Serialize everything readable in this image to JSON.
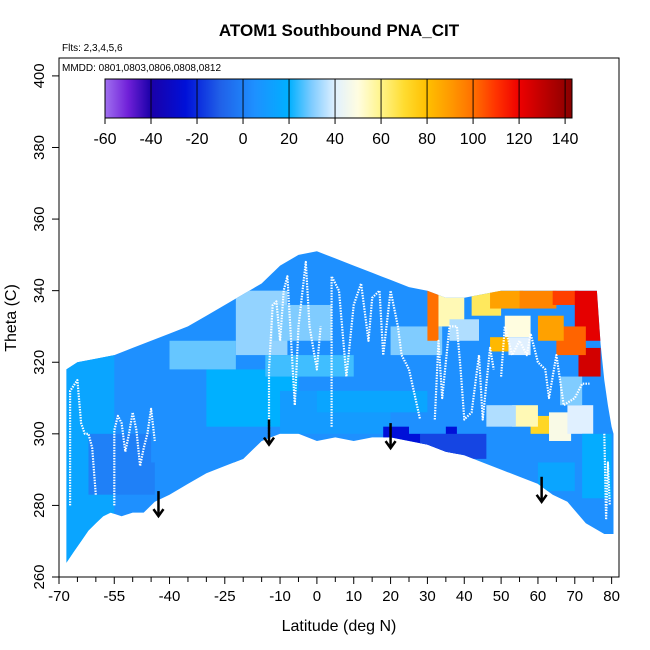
{
  "chart_data": {
    "type": "heatmap",
    "title": "ATOM1 Southbound PNA_CIT",
    "flights_note": "Flts: 2,3,4,5,6",
    "dates_note": "MMDD: 0801,0803,0806,0808,0812",
    "xlabel": "Latitude (deg N)",
    "ylabel": "Theta (C)",
    "xlim": [
      -70,
      82
    ],
    "ylim": [
      260,
      405
    ],
    "x_ticks": [
      -70,
      -55,
      -40,
      -25,
      -10,
      0,
      10,
      20,
      30,
      40,
      50,
      60,
      70,
      80
    ],
    "x_minor_ticks": [
      -65,
      -60,
      -50,
      -45,
      -35,
      -30,
      -20,
      -15,
      -5,
      5,
      15,
      25,
      35,
      45,
      55,
      65,
      75
    ],
    "y_ticks": [
      260,
      280,
      300,
      320,
      340,
      360,
      380,
      400
    ],
    "colorbar": {
      "range": [
        -60,
        143
      ],
      "ticks": [
        -60,
        -40,
        -20,
        0,
        20,
        40,
        60,
        80,
        100,
        120,
        140
      ],
      "boundaries": [
        -40,
        -20,
        0,
        20,
        40,
        60,
        80,
        100,
        120,
        140
      ],
      "stops": [
        {
          "v": -60,
          "c": "#a070f0"
        },
        {
          "v": -50,
          "c": "#7020d8"
        },
        {
          "v": -40,
          "c": "#1a00a8"
        },
        {
          "v": -25,
          "c": "#0010d8"
        },
        {
          "v": -10,
          "c": "#2060e8"
        },
        {
          "v": 5,
          "c": "#1e90ff"
        },
        {
          "v": 20,
          "c": "#00b0ff"
        },
        {
          "v": 30,
          "c": "#80ccff"
        },
        {
          "v": 40,
          "c": "#e0f0ff"
        },
        {
          "v": 50,
          "c": "#fffde0"
        },
        {
          "v": 60,
          "c": "#fff48a"
        },
        {
          "v": 70,
          "c": "#ffdc30"
        },
        {
          "v": 80,
          "c": "#ffbf00"
        },
        {
          "v": 90,
          "c": "#ff9a00"
        },
        {
          "v": 100,
          "c": "#ff7000"
        },
        {
          "v": 110,
          "c": "#ff3300"
        },
        {
          "v": 120,
          "c": "#ee0000"
        },
        {
          "v": 130,
          "c": "#c00000"
        },
        {
          "v": 143,
          "c": "#880000"
        }
      ]
    },
    "top_envelope": [
      [
        -68,
        318
      ],
      [
        -65,
        320
      ],
      [
        -60,
        321
      ],
      [
        -55,
        322
      ],
      [
        -50,
        324
      ],
      [
        -45,
        326
      ],
      [
        -40,
        328
      ],
      [
        -35,
        330
      ],
      [
        -30,
        333
      ],
      [
        -25,
        336
      ],
      [
        -20,
        339
      ],
      [
        -15,
        342
      ],
      [
        -10,
        347
      ],
      [
        -5,
        350
      ],
      [
        0,
        351
      ],
      [
        5,
        349
      ],
      [
        10,
        347
      ],
      [
        15,
        345
      ],
      [
        20,
        343
      ],
      [
        25,
        341
      ],
      [
        30,
        340
      ],
      [
        35,
        338
      ],
      [
        40,
        338
      ],
      [
        45,
        339
      ],
      [
        50,
        340
      ],
      [
        55,
        340
      ],
      [
        60,
        340
      ],
      [
        65,
        340
      ],
      [
        70,
        340
      ],
      [
        76,
        340
      ],
      [
        77,
        325
      ],
      [
        78,
        315
      ],
      [
        79,
        308
      ],
      [
        80,
        302
      ],
      [
        80.5,
        300
      ]
    ],
    "bottom_envelope": [
      [
        80.5,
        300
      ],
      [
        80.5,
        272
      ],
      [
        78,
        272
      ],
      [
        73,
        275
      ],
      [
        68,
        281
      ],
      [
        64,
        283
      ],
      [
        60,
        286
      ],
      [
        55,
        288
      ],
      [
        50,
        290
      ],
      [
        45,
        292
      ],
      [
        40,
        294
      ],
      [
        35,
        295
      ],
      [
        30,
        297
      ],
      [
        25,
        298
      ],
      [
        20,
        299
      ],
      [
        15,
        299
      ],
      [
        10,
        298
      ],
      [
        5,
        299
      ],
      [
        0,
        298
      ],
      [
        -5,
        300
      ],
      [
        -10,
        300
      ],
      [
        -15,
        298
      ],
      [
        -20,
        293
      ],
      [
        -25,
        291
      ],
      [
        -30,
        289
      ],
      [
        -35,
        286
      ],
      [
        -40,
        283
      ],
      [
        -44,
        281
      ],
      [
        -47,
        278
      ],
      [
        -50,
        278
      ],
      [
        -53,
        277
      ],
      [
        -56,
        278
      ],
      [
        -58,
        277
      ],
      [
        -60,
        275
      ],
      [
        -62,
        273
      ],
      [
        -64,
        270
      ],
      [
        -66,
        267
      ],
      [
        -68,
        264
      ],
      [
        -68,
        318
      ]
    ],
    "field_patches": [
      {
        "x": [
          -68,
          -55
        ],
        "y": [
          264,
          322
        ],
        "value": 15
      },
      {
        "x": [
          -62,
          -44
        ],
        "y": [
          283,
          300
        ],
        "value": 0
      },
      {
        "x": [
          -45,
          -14
        ],
        "y": [
          292,
          304
        ],
        "value": 5
      },
      {
        "x": [
          -30,
          -5
        ],
        "y": [
          302,
          318
        ],
        "value": 20
      },
      {
        "x": [
          -40,
          -22
        ],
        "y": [
          318,
          326
        ],
        "value": 28
      },
      {
        "x": [
          -22,
          -8
        ],
        "y": [
          322,
          340
        ],
        "value": 32
      },
      {
        "x": [
          -12,
          4
        ],
        "y": [
          326,
          336
        ],
        "value": 30
      },
      {
        "x": [
          -14,
          10
        ],
        "y": [
          316,
          322
        ],
        "value": 25
      },
      {
        "x": [
          -10,
          20
        ],
        "y": [
          300,
          312
        ],
        "value": 10
      },
      {
        "x": [
          0,
          30
        ],
        "y": [
          306,
          312
        ],
        "value": 15
      },
      {
        "x": [
          18,
          38
        ],
        "y": [
          294,
          302
        ],
        "value": -25
      },
      {
        "x": [
          28,
          46
        ],
        "y": [
          293,
          300
        ],
        "value": -15
      },
      {
        "x": [
          25,
          35
        ],
        "y": [
          300,
          306
        ],
        "value": 5
      },
      {
        "x": [
          20,
          34
        ],
        "y": [
          322,
          330
        ],
        "value": 30
      },
      {
        "x": [
          30,
          33
        ],
        "y": [
          326,
          340
        ],
        "value": 100
      },
      {
        "x": [
          33,
          40
        ],
        "y": [
          330,
          340
        ],
        "value": 55
      },
      {
        "x": [
          36,
          44
        ],
        "y": [
          326,
          332
        ],
        "value": 35
      },
      {
        "x": [
          42,
          50
        ],
        "y": [
          333,
          340
        ],
        "value": 65
      },
      {
        "x": [
          47,
          56
        ],
        "y": [
          335,
          340
        ],
        "value": 88
      },
      {
        "x": [
          55,
          65
        ],
        "y": [
          335,
          340
        ],
        "value": 95
      },
      {
        "x": [
          64,
          71
        ],
        "y": [
          336,
          340
        ],
        "value": 108
      },
      {
        "x": [
          70,
          77
        ],
        "y": [
          326,
          340
        ],
        "value": 122
      },
      {
        "x": [
          71,
          77
        ],
        "y": [
          316,
          324
        ],
        "value": 126
      },
      {
        "x": [
          65,
          73
        ],
        "y": [
          322,
          330
        ],
        "value": 102
      },
      {
        "x": [
          60,
          67
        ],
        "y": [
          326,
          333
        ],
        "value": 88
      },
      {
        "x": [
          51,
          58
        ],
        "y": [
          327,
          333
        ],
        "value": 50
      },
      {
        "x": [
          47,
          52
        ],
        "y": [
          323,
          327
        ],
        "value": 82
      },
      {
        "x": [
          52,
          58
        ],
        "y": [
          322,
          327
        ],
        "value": 40
      },
      {
        "x": [
          58,
          63
        ],
        "y": [
          300,
          305
        ],
        "value": 72
      },
      {
        "x": [
          53,
          60
        ],
        "y": [
          302,
          308
        ],
        "value": 55
      },
      {
        "x": [
          63,
          69
        ],
        "y": [
          298,
          306
        ],
        "value": 48
      },
      {
        "x": [
          68,
          75
        ],
        "y": [
          300,
          308
        ],
        "value": 40
      },
      {
        "x": [
          46,
          54
        ],
        "y": [
          302,
          308
        ],
        "value": 35
      },
      {
        "x": [
          66,
          72
        ],
        "y": [
          308,
          316
        ],
        "value": 30
      },
      {
        "x": [
          72,
          80
        ],
        "y": [
          282,
          300
        ],
        "value": 18
      },
      {
        "x": [
          60,
          70
        ],
        "y": [
          284,
          292
        ],
        "value": 15
      }
    ],
    "arrows": [
      {
        "lat": -43,
        "theta_top": 284,
        "theta_tip": 277
      },
      {
        "lat": -13,
        "theta_top": 304,
        "theta_tip": 297
      },
      {
        "lat": 20,
        "theta_top": 303,
        "theta_tip": 296
      },
      {
        "lat": 61,
        "theta_top": 288,
        "theta_tip": 281
      }
    ],
    "flight_tracks": [
      [
        [
          -67,
          280
        ],
        [
          -67,
          312
        ],
        [
          -65,
          315
        ],
        [
          -64,
          303
        ],
        [
          -63,
          300
        ],
        [
          -62,
          300
        ],
        [
          -61,
          296
        ],
        [
          -60,
          283
        ]
      ],
      [
        [
          -55,
          280
        ],
        [
          -55,
          301
        ],
        [
          -54,
          305
        ],
        [
          -53,
          303
        ],
        [
          -52,
          295
        ],
        [
          -51,
          300
        ],
        [
          -50,
          306
        ],
        [
          -49,
          301
        ],
        [
          -48,
          291
        ],
        [
          -47,
          296
        ],
        [
          -46,
          300
        ],
        [
          -45,
          307
        ],
        [
          -44,
          298
        ]
      ],
      [
        [
          -13,
          298
        ],
        [
          -13,
          318
        ],
        [
          -12,
          336
        ],
        [
          -11,
          337
        ],
        [
          -10,
          326
        ],
        [
          -9,
          340
        ],
        [
          -8,
          344
        ],
        [
          -7,
          326
        ],
        [
          -6,
          308
        ],
        [
          -5,
          330
        ],
        [
          -3,
          348
        ],
        [
          -2,
          330
        ],
        [
          0,
          318
        ],
        [
          1,
          330
        ]
      ],
      [
        [
          4,
          302
        ],
        [
          4,
          344
        ],
        [
          6,
          340
        ],
        [
          8,
          316
        ],
        [
          10,
          336
        ],
        [
          12,
          342
        ],
        [
          14,
          326
        ],
        [
          15,
          338
        ],
        [
          17,
          340
        ],
        [
          18,
          322
        ],
        [
          20,
          340
        ],
        [
          22,
          330
        ],
        [
          23,
          322
        ],
        [
          25,
          318
        ],
        [
          28,
          304
        ]
      ],
      [
        [
          32,
          304
        ],
        [
          33,
          326
        ],
        [
          34,
          310
        ],
        [
          36,
          330
        ],
        [
          38,
          330
        ],
        [
          39,
          318
        ],
        [
          40,
          304
        ],
        [
          42,
          306
        ],
        [
          44,
          322
        ],
        [
          45,
          304
        ],
        [
          47,
          324
        ],
        [
          48,
          318
        ]
      ],
      [
        [
          50,
          316
        ],
        [
          51,
          330
        ],
        [
          53,
          322
        ],
        [
          55,
          326
        ],
        [
          57,
          322
        ],
        [
          58,
          328
        ],
        [
          60,
          320
        ],
        [
          62,
          318
        ],
        [
          63,
          310
        ],
        [
          64,
          316
        ],
        [
          65,
          322
        ],
        [
          67,
          308
        ],
        [
          70,
          310
        ],
        [
          72,
          314
        ],
        [
          74,
          314
        ]
      ],
      [
        [
          78,
          300
        ],
        [
          78.5,
          276
        ],
        [
          79,
          292
        ],
        [
          79.5,
          280
        ]
      ]
    ]
  }
}
